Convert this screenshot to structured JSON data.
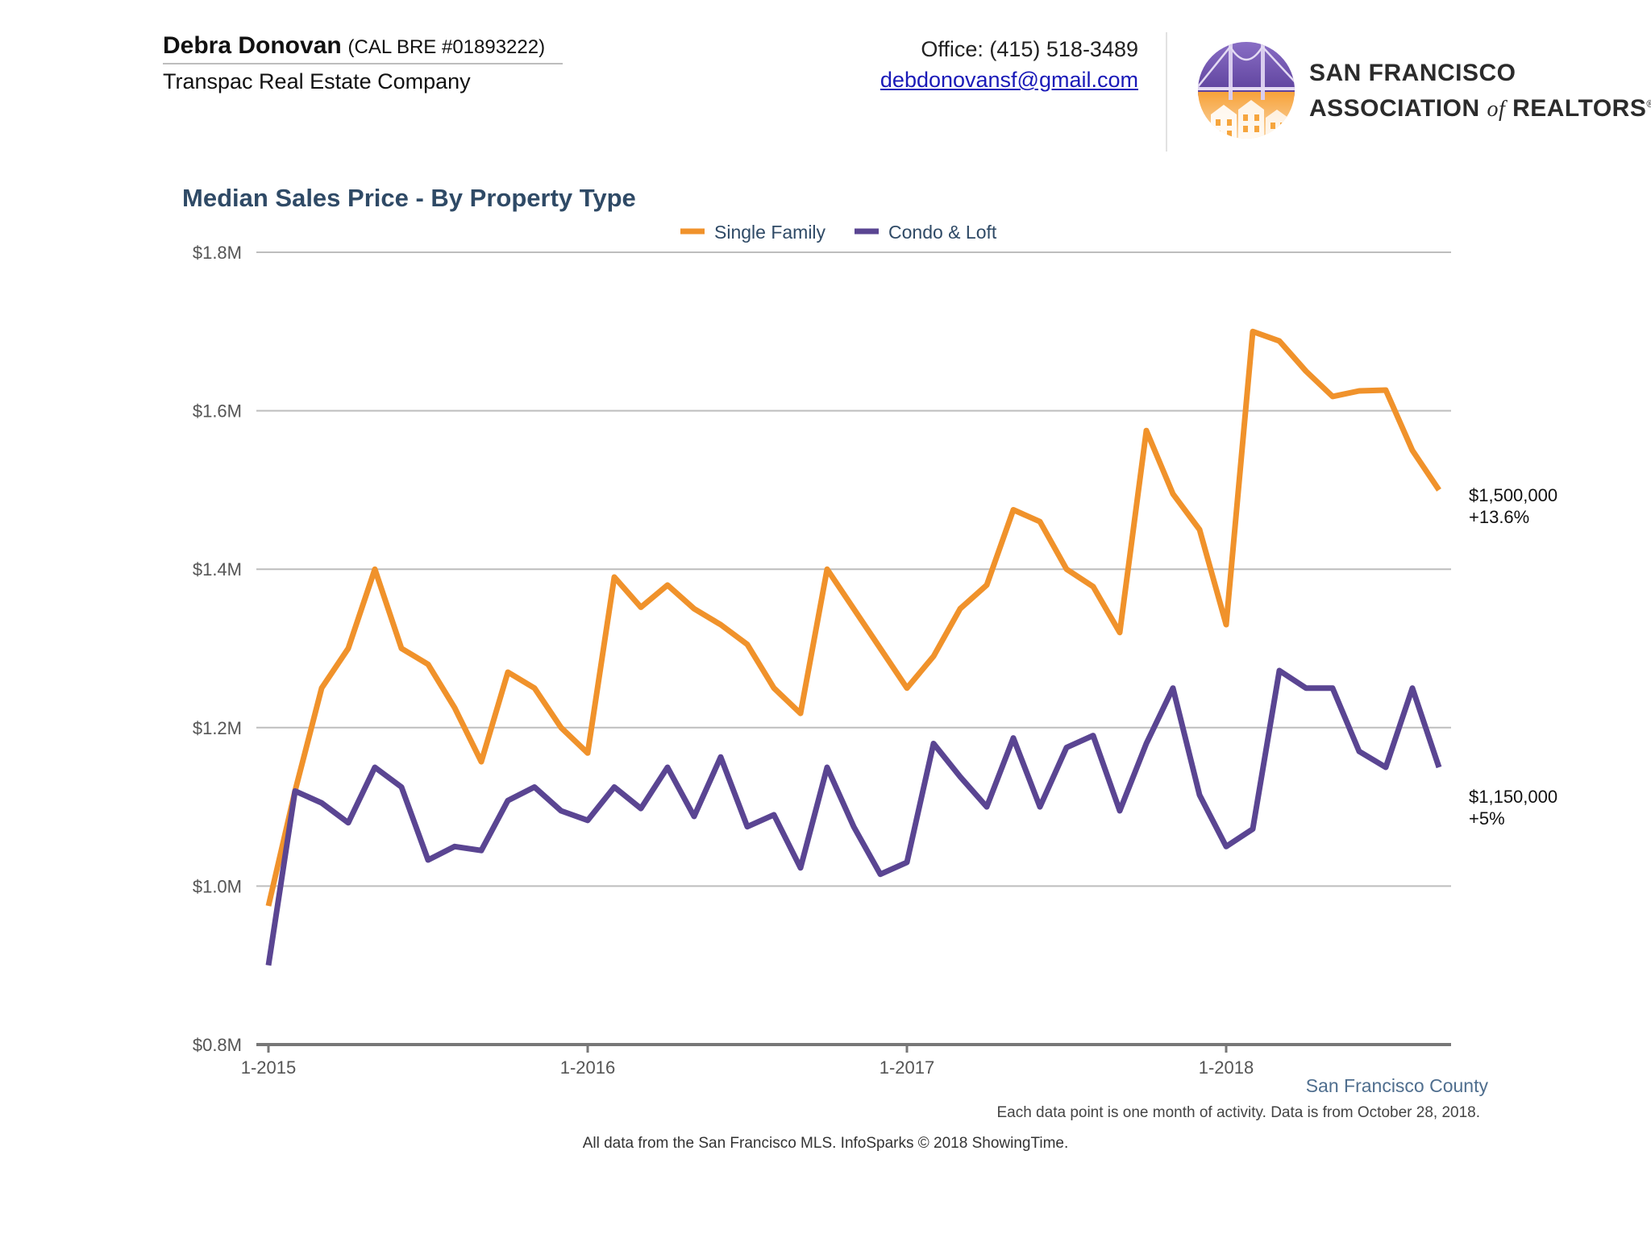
{
  "header": {
    "agent_name": "Debra Donovan",
    "agent_license": "(CAL BRE #01893222)",
    "company": "Transpac Real Estate Company",
    "office_phone": "Office: (415) 518-3489",
    "email": "debdonovansf@gmail.com",
    "logo_line1": "SAN FRANCISCO",
    "logo_line2_a": "ASSOCIATION",
    "logo_line2_of": "of",
    "logo_line2_b": "REALTORS",
    "logo_reg": "®",
    "logo_icon": "golden-gate-bridge-houses-logo"
  },
  "colors": {
    "single_family": "#f0922b",
    "condo_loft": "#5a4592",
    "grid": "#bdbdbd",
    "axis": "#777777",
    "title": "#2f4a66"
  },
  "chart_data": {
    "type": "line",
    "title": "Median Sales Price - By Property Type",
    "xlabel": "",
    "ylabel": "",
    "ylim": [
      0.8,
      1.8
    ],
    "y_ticks": [
      {
        "value": 1.8,
        "label": "$1.8M"
      },
      {
        "value": 1.6,
        "label": "$1.6M"
      },
      {
        "value": 1.4,
        "label": "$1.4M"
      },
      {
        "value": 1.2,
        "label": "$1.2M"
      },
      {
        "value": 1.0,
        "label": "$1.0M"
      },
      {
        "value": 0.8,
        "label": "$0.8M"
      }
    ],
    "x_ticks": [
      {
        "index": 0,
        "label": "1-2015"
      },
      {
        "index": 12,
        "label": "1-2016"
      },
      {
        "index": 24,
        "label": "1-2017"
      },
      {
        "index": 36,
        "label": "1-2018"
      }
    ],
    "legend_position": "top-center",
    "grid": true,
    "series": [
      {
        "name": "Single Family",
        "color": "#f0922b",
        "values": [
          0.975,
          1.12,
          1.25,
          1.3,
          1.4,
          1.3,
          1.28,
          1.225,
          1.157,
          1.27,
          1.25,
          1.2,
          1.168,
          1.39,
          1.352,
          1.38,
          1.35,
          1.33,
          1.305,
          1.25,
          1.218,
          1.4,
          1.35,
          1.3,
          1.25,
          1.29,
          1.35,
          1.38,
          1.475,
          1.46,
          1.4,
          1.378,
          1.32,
          1.575,
          1.495,
          1.45,
          1.33,
          1.7,
          1.688,
          1.65,
          1.618,
          1.625,
          1.626,
          1.55,
          1.5
        ],
        "end_value_label": "$1,500,000",
        "end_change_label": "+13.6%"
      },
      {
        "name": "Condo & Loft",
        "color": "#5a4592",
        "values": [
          0.9,
          1.12,
          1.105,
          1.08,
          1.15,
          1.125,
          1.033,
          1.05,
          1.045,
          1.108,
          1.125,
          1.095,
          1.083,
          1.125,
          1.098,
          1.15,
          1.088,
          1.163,
          1.075,
          1.09,
          1.023,
          1.15,
          1.075,
          1.015,
          1.03,
          1.18,
          1.138,
          1.1,
          1.187,
          1.1,
          1.175,
          1.19,
          1.095,
          1.18,
          1.25,
          1.115,
          1.05,
          1.072,
          1.272,
          1.25,
          1.25,
          1.17,
          1.15,
          1.25,
          1.15
        ],
        "end_value_label": "$1,150,000",
        "end_change_label": "+5%"
      }
    ]
  },
  "footer": {
    "region": "San Francisco County",
    "note": "Each data point is one month of activity. Data is from October 28, 2018.",
    "credit": "All data from the San Francisco MLS. InfoSparks © 2018 ShowingTime."
  }
}
